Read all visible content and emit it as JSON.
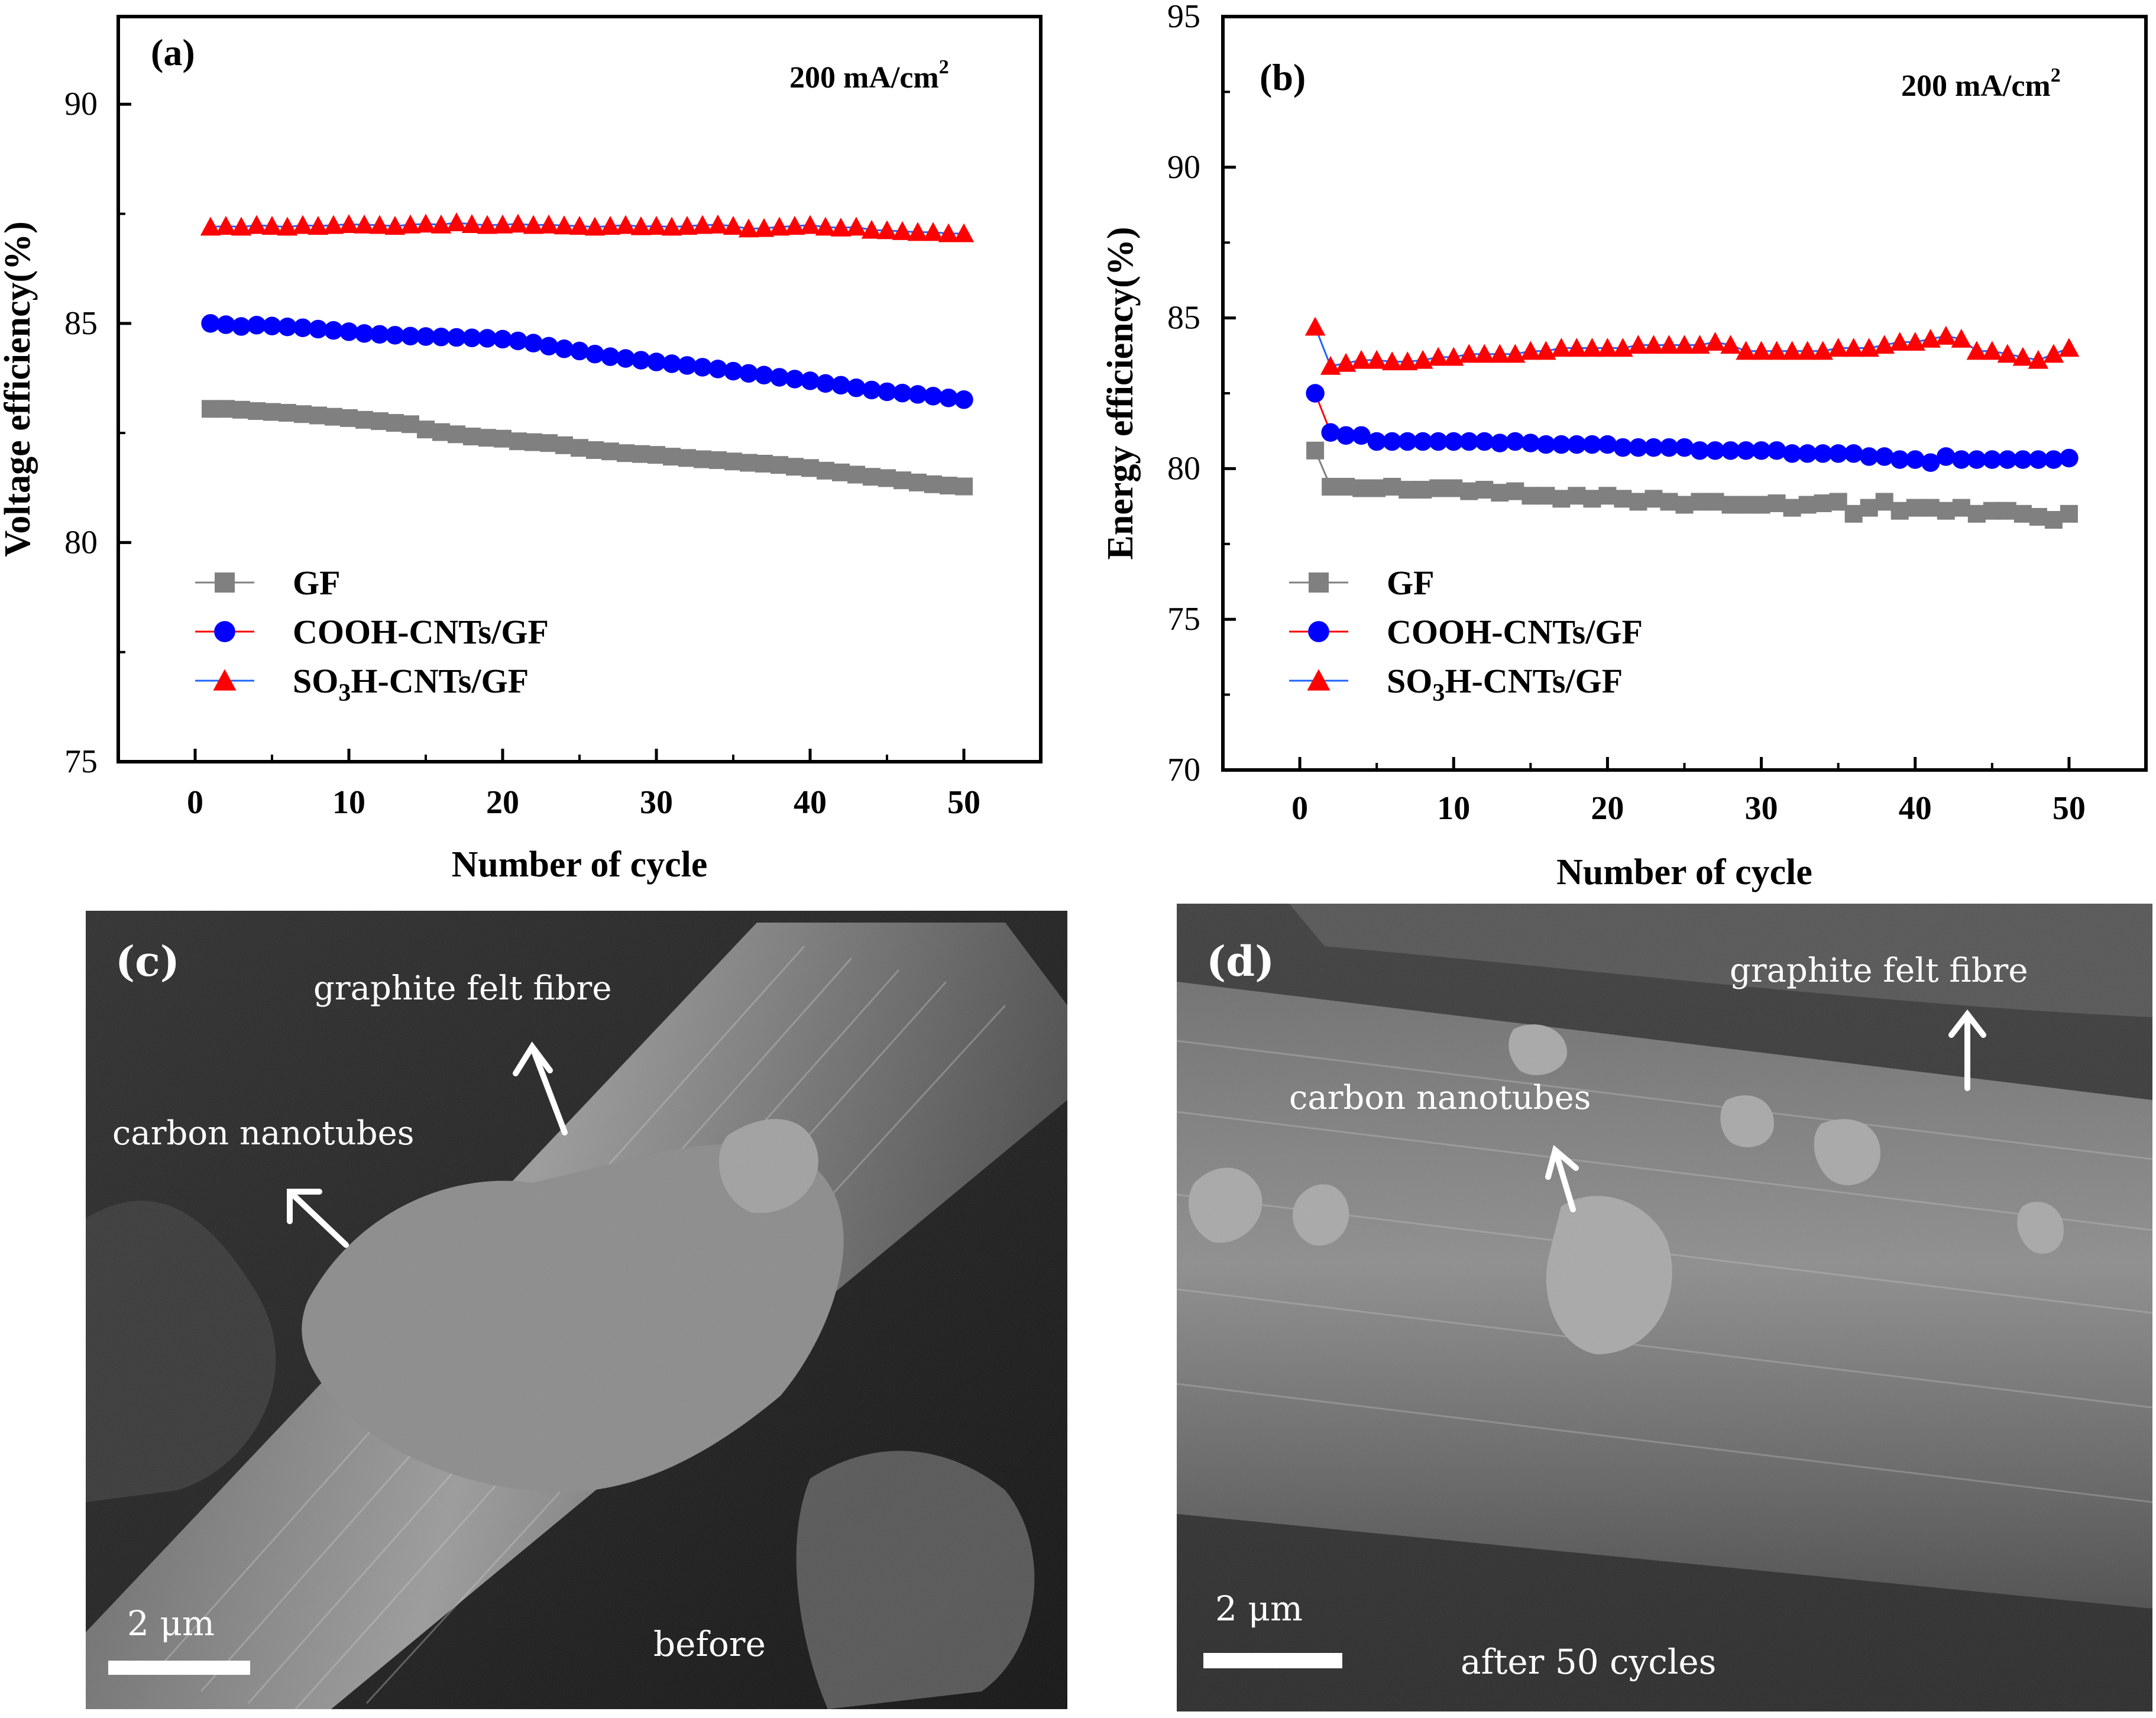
{
  "panels": {
    "a": {
      "tag": "(a)",
      "current_density_main": "200 mA/cm",
      "current_density_sup": "2"
    },
    "b": {
      "tag": "(b)",
      "current_density_main": "200 mA/cm",
      "current_density_sup": "2"
    },
    "c": {
      "tag": "(c)",
      "label_fibre": "graphite felt fibre",
      "label_cnt": "carbon nanotubes",
      "scale_bar": "2 μm",
      "caption": "before"
    },
    "d": {
      "tag": "(d)",
      "label_fibre": "graphite felt fibre",
      "label_cnt": "carbon nanotubes",
      "scale_bar": "2 μm",
      "caption": "after 50 cycles"
    }
  },
  "colors": {
    "gf": "#808080",
    "cooh": "#0000ff",
    "so3h": "#ff0000",
    "cooh_line": "#ff0000",
    "so3h_line": "#1e64ff",
    "axis": "#000000"
  },
  "chart_data": [
    {
      "type": "line",
      "panel": "a",
      "title": "",
      "xlabel": "Number of cycle",
      "ylabel": "Voltage efficiency(%)",
      "xlim": [
        -5,
        55
      ],
      "ylim": [
        75,
        92
      ],
      "xticks": [
        0,
        10,
        20,
        30,
        40,
        50
      ],
      "yticks": [
        75,
        80,
        85,
        90
      ],
      "grid": false,
      "legend_position": "bottom-left",
      "x": [
        1,
        2,
        3,
        4,
        5,
        6,
        7,
        8,
        9,
        10,
        11,
        12,
        13,
        14,
        15,
        16,
        17,
        18,
        19,
        20,
        21,
        22,
        23,
        24,
        25,
        26,
        27,
        28,
        29,
        30,
        31,
        32,
        33,
        34,
        35,
        36,
        37,
        38,
        39,
        40,
        41,
        42,
        43,
        44,
        45,
        46,
        47,
        48,
        49,
        50
      ],
      "series": [
        {
          "name": "GF",
          "legend_main": "GF",
          "legend_sub": "",
          "legend_tail": "",
          "marker": "square",
          "color_key": "gf",
          "line_color_key": "gf",
          "values": [
            83.05,
            83.05,
            83.03,
            83.0,
            82.98,
            82.96,
            82.93,
            82.9,
            82.87,
            82.84,
            82.8,
            82.77,
            82.73,
            82.7,
            82.58,
            82.52,
            82.47,
            82.42,
            82.39,
            82.37,
            82.31,
            82.29,
            82.27,
            82.22,
            82.16,
            82.11,
            82.08,
            82.04,
            82.02,
            82.0,
            81.96,
            81.93,
            81.9,
            81.88,
            81.85,
            81.82,
            81.8,
            81.77,
            81.73,
            81.7,
            81.64,
            81.6,
            81.55,
            81.5,
            81.47,
            81.42,
            81.37,
            81.33,
            81.3,
            81.28
          ]
        },
        {
          "name": "COOH-CNTs/GF",
          "legend_main": "COOH-CNTs/GF",
          "legend_sub": "",
          "legend_tail": "",
          "marker": "circle",
          "color_key": "cooh",
          "line_color_key": "cooh_line",
          "values": [
            85.0,
            84.97,
            84.93,
            84.96,
            84.94,
            84.92,
            84.9,
            84.87,
            84.84,
            84.81,
            84.77,
            84.75,
            84.73,
            84.71,
            84.7,
            84.69,
            84.68,
            84.67,
            84.66,
            84.64,
            84.6,
            84.55,
            84.48,
            84.42,
            84.37,
            84.3,
            84.24,
            84.2,
            84.16,
            84.12,
            84.08,
            84.04,
            84.0,
            83.96,
            83.91,
            83.86,
            83.82,
            83.77,
            83.73,
            83.69,
            83.63,
            83.59,
            83.53,
            83.48,
            83.44,
            83.41,
            83.38,
            83.34,
            83.3,
            83.26
          ]
        },
        {
          "name": "SO3H-CNTs/GF",
          "legend_main": "SO",
          "legend_sub": "3",
          "legend_tail": "H-CNTs/GF",
          "marker": "triangle",
          "color_key": "so3h",
          "line_color_key": "so3h_line",
          "values": [
            87.2,
            87.22,
            87.2,
            87.24,
            87.22,
            87.2,
            87.24,
            87.22,
            87.24,
            87.26,
            87.25,
            87.24,
            87.22,
            87.25,
            87.27,
            87.25,
            87.3,
            87.26,
            87.24,
            87.25,
            87.27,
            87.24,
            87.25,
            87.23,
            87.22,
            87.2,
            87.22,
            87.24,
            87.21,
            87.22,
            87.2,
            87.22,
            87.24,
            87.25,
            87.22,
            87.16,
            87.17,
            87.2,
            87.22,
            87.24,
            87.2,
            87.18,
            87.2,
            87.13,
            87.12,
            87.1,
            87.08,
            87.08,
            87.05,
            87.05
          ]
        }
      ]
    },
    {
      "type": "line",
      "panel": "b",
      "title": "",
      "xlabel": "Number of cycle",
      "ylabel": "Energy efficiency(%)",
      "xlim": [
        -5,
        55
      ],
      "ylim": [
        70,
        95
      ],
      "xticks": [
        0,
        10,
        20,
        30,
        40,
        50
      ],
      "yticks": [
        70,
        75,
        80,
        85,
        90,
        95
      ],
      "grid": false,
      "legend_position": "bottom-left",
      "x": [
        1,
        2,
        3,
        4,
        5,
        6,
        7,
        8,
        9,
        10,
        11,
        12,
        13,
        14,
        15,
        16,
        17,
        18,
        19,
        20,
        21,
        22,
        23,
        24,
        25,
        26,
        27,
        28,
        29,
        30,
        31,
        32,
        33,
        34,
        35,
        36,
        37,
        38,
        39,
        40,
        41,
        42,
        43,
        44,
        45,
        46,
        47,
        48,
        49,
        50
      ],
      "series": [
        {
          "name": "GF",
          "legend_main": "GF",
          "legend_sub": "",
          "legend_tail": "",
          "marker": "square",
          "color_key": "gf",
          "line_color_key": "gf",
          "values": [
            80.6,
            79.4,
            79.4,
            79.35,
            79.35,
            79.4,
            79.3,
            79.3,
            79.35,
            79.35,
            79.25,
            79.3,
            79.2,
            79.25,
            79.1,
            79.1,
            79.0,
            79.1,
            79.0,
            79.1,
            79.0,
            78.9,
            79.0,
            78.9,
            78.8,
            78.9,
            78.9,
            78.8,
            78.8,
            78.8,
            78.85,
            78.7,
            78.8,
            78.85,
            78.9,
            78.5,
            78.7,
            78.9,
            78.6,
            78.7,
            78.7,
            78.6,
            78.7,
            78.5,
            78.6,
            78.6,
            78.5,
            78.4,
            78.3,
            78.5
          ]
        },
        {
          "name": "COOH-CNTs/GF",
          "legend_main": "COOH-CNTs/GF",
          "legend_sub": "",
          "legend_tail": "",
          "marker": "circle",
          "color_key": "cooh",
          "line_color_key": "cooh_line",
          "values": [
            82.5,
            81.2,
            81.1,
            81.1,
            80.9,
            80.9,
            80.9,
            80.9,
            80.9,
            80.9,
            80.9,
            80.9,
            80.85,
            80.9,
            80.85,
            80.8,
            80.8,
            80.8,
            80.8,
            80.8,
            80.7,
            80.7,
            80.7,
            80.7,
            80.7,
            80.6,
            80.6,
            80.6,
            80.6,
            80.6,
            80.6,
            80.5,
            80.5,
            80.5,
            80.5,
            80.5,
            80.4,
            80.4,
            80.3,
            80.3,
            80.2,
            80.4,
            80.3,
            80.3,
            80.3,
            80.3,
            80.3,
            80.3,
            80.3,
            80.35
          ]
        },
        {
          "name": "SO3H-CNTs/GF",
          "legend_main": "SO",
          "legend_sub": "3",
          "legend_tail": "H-CNTs/GF",
          "marker": "triangle",
          "color_key": "so3h",
          "line_color_key": "so3h_line",
          "values": [
            84.7,
            83.4,
            83.5,
            83.6,
            83.6,
            83.55,
            83.55,
            83.6,
            83.7,
            83.7,
            83.8,
            83.8,
            83.8,
            83.8,
            83.9,
            83.9,
            84.0,
            84.0,
            84.0,
            84.0,
            84.0,
            84.1,
            84.1,
            84.1,
            84.1,
            84.1,
            84.2,
            84.1,
            83.9,
            83.9,
            83.9,
            83.9,
            83.9,
            83.9,
            84.0,
            84.0,
            84.0,
            84.1,
            84.2,
            84.2,
            84.3,
            84.4,
            84.3,
            83.9,
            83.9,
            83.8,
            83.7,
            83.6,
            83.8,
            84.0
          ]
        }
      ]
    }
  ]
}
